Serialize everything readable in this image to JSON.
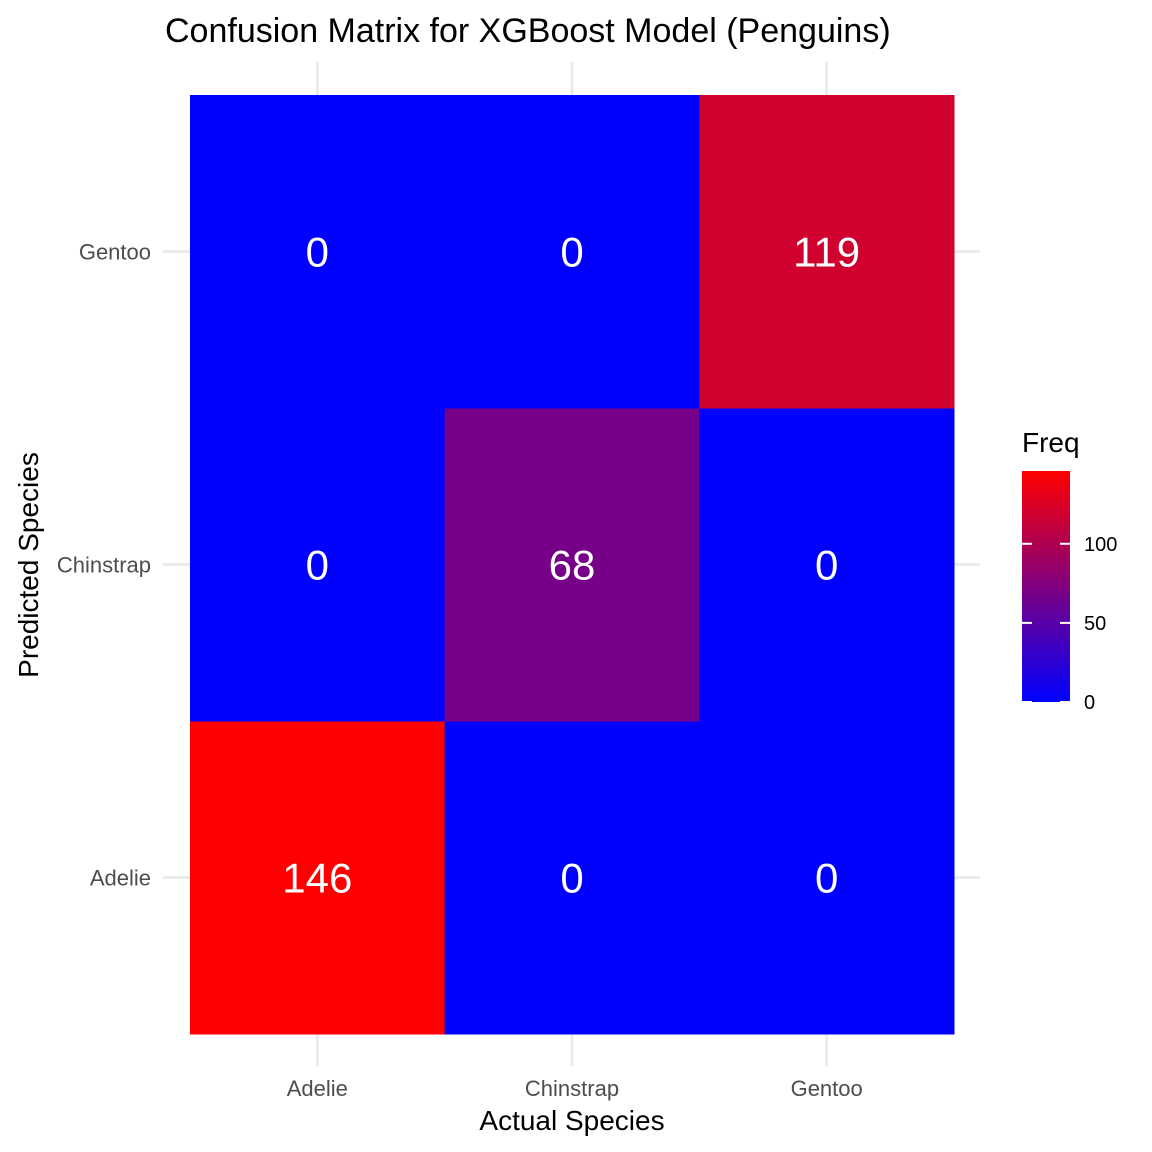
{
  "chart_data": {
    "type": "heatmap",
    "title": "Confusion Matrix for XGBoost Model (Penguins)",
    "xlabel": "Actual Species",
    "ylabel": "Predicted Species",
    "x_categories": [
      "Adelie",
      "Chinstrap",
      "Gentoo"
    ],
    "y_categories": [
      "Adelie",
      "Chinstrap",
      "Gentoo"
    ],
    "cells": [
      {
        "actual": "Adelie",
        "predicted": "Adelie",
        "freq": 146
      },
      {
        "actual": "Chinstrap",
        "predicted": "Adelie",
        "freq": 0
      },
      {
        "actual": "Gentoo",
        "predicted": "Adelie",
        "freq": 0
      },
      {
        "actual": "Adelie",
        "predicted": "Chinstrap",
        "freq": 0
      },
      {
        "actual": "Chinstrap",
        "predicted": "Chinstrap",
        "freq": 68
      },
      {
        "actual": "Gentoo",
        "predicted": "Chinstrap",
        "freq": 0
      },
      {
        "actual": "Adelie",
        "predicted": "Gentoo",
        "freq": 0
      },
      {
        "actual": "Chinstrap",
        "predicted": "Gentoo",
        "freq": 0
      },
      {
        "actual": "Gentoo",
        "predicted": "Gentoo",
        "freq": 119
      }
    ],
    "legend": {
      "title": "Freq",
      "ticks": [
        0,
        50,
        100
      ],
      "range": [
        0,
        146
      ],
      "low_color": "#0000ff",
      "high_color": "#ff0000",
      "placement": "right"
    },
    "grid": true
  }
}
